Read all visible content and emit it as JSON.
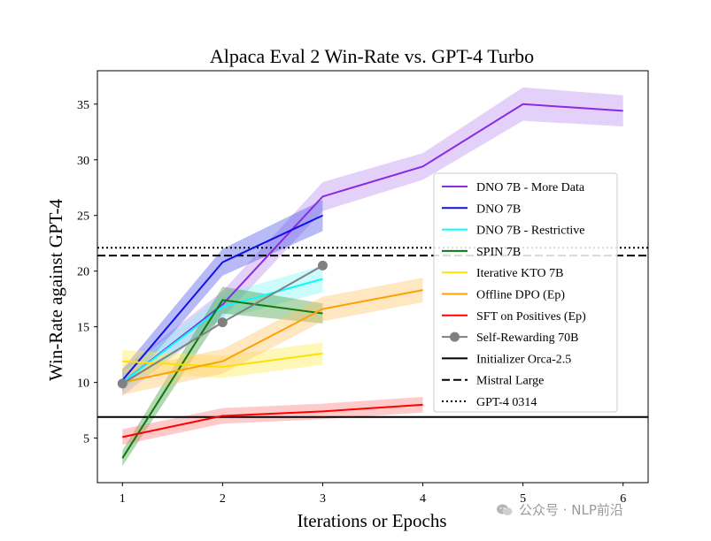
{
  "watermark": {
    "text": "公众号 · NLP前沿",
    "icon": "wechat-icon"
  },
  "chart_data": {
    "type": "line",
    "title": "Alpaca Eval 2 Win-Rate vs. GPT-4 Turbo",
    "xlabel": "Iterations or Epochs",
    "ylabel": "Win-Rate against GPT-4",
    "xlim": [
      0.75,
      6.25
    ],
    "ylim": [
      1,
      38
    ],
    "xticks": [
      1,
      2,
      3,
      4,
      5,
      6
    ],
    "yticks": [
      5,
      10,
      15,
      20,
      25,
      30,
      35
    ],
    "grid": false,
    "legend_position": "center-right",
    "series": [
      {
        "name": "DNO 7B - More Data",
        "color": "#8a2be2",
        "band_color": "#b88cf0",
        "x": [
          1,
          2,
          3,
          4,
          5,
          6
        ],
        "y": [
          10.0,
          17.0,
          26.7,
          29.4,
          35.0,
          34.4
        ],
        "band": [
          1.2,
          1.2,
          1.3,
          1.2,
          1.5,
          1.4
        ]
      },
      {
        "name": "DNO 7B",
        "color": "#1010e8",
        "band_color": "#4a52e8",
        "x": [
          1,
          2,
          3
        ],
        "y": [
          10.2,
          20.8,
          25.0
        ],
        "band": [
          1.0,
          1.2,
          1.4
        ]
      },
      {
        "name": "DNO 7B - Restrictive",
        "color": "#00ffff",
        "band_color": "#7ff5f5",
        "x": [
          1,
          2,
          3
        ],
        "y": [
          10.0,
          16.8,
          19.3
        ],
        "band": [
          0.9,
          1.1,
          1.2
        ]
      },
      {
        "name": "SPIN 7B",
        "color": "#0b7a0b",
        "band_color": "#3f9a3f",
        "x": [
          1,
          2,
          3
        ],
        "y": [
          3.2,
          17.4,
          16.2
        ],
        "band": [
          0.7,
          1.2,
          0.9
        ]
      },
      {
        "name": "Iterative KTO 7B",
        "color": "#ffe000",
        "band_color": "#ffea4d",
        "x": [
          1,
          2,
          3
        ],
        "y": [
          11.9,
          11.4,
          12.6
        ],
        "band": [
          1.0,
          1.0,
          1.0
        ]
      },
      {
        "name": "Offline DPO (Ep)",
        "color": "#ffa000",
        "band_color": "#ffc266",
        "x": [
          1,
          2,
          3,
          4
        ],
        "y": [
          10.0,
          11.9,
          16.6,
          18.3
        ],
        "band": [
          1.1,
          1.1,
          1.1,
          1.1
        ]
      },
      {
        "name": "SFT on Positives (Ep)",
        "color": "#ff0000",
        "band_color": "#ff7a7a",
        "x": [
          1,
          2,
          3,
          4
        ],
        "y": [
          5.1,
          7.0,
          7.4,
          8.0
        ],
        "band": [
          0.7,
          0.7,
          0.7,
          0.7
        ]
      },
      {
        "name": "Self-Rewarding 70B",
        "color": "#808080",
        "marker": "circle",
        "x": [
          1,
          2,
          3
        ],
        "y": [
          9.9,
          15.4,
          20.5
        ]
      },
      {
        "name": "Initializer Orca-2.5",
        "color": "#000000",
        "style": "solid",
        "hline": 6.9
      },
      {
        "name": "Mistral Large",
        "color": "#000000",
        "style": "dashed",
        "hline": 21.4
      },
      {
        "name": "GPT-4 0314",
        "color": "#000000",
        "style": "dotted",
        "hline": 22.1
      }
    ]
  }
}
